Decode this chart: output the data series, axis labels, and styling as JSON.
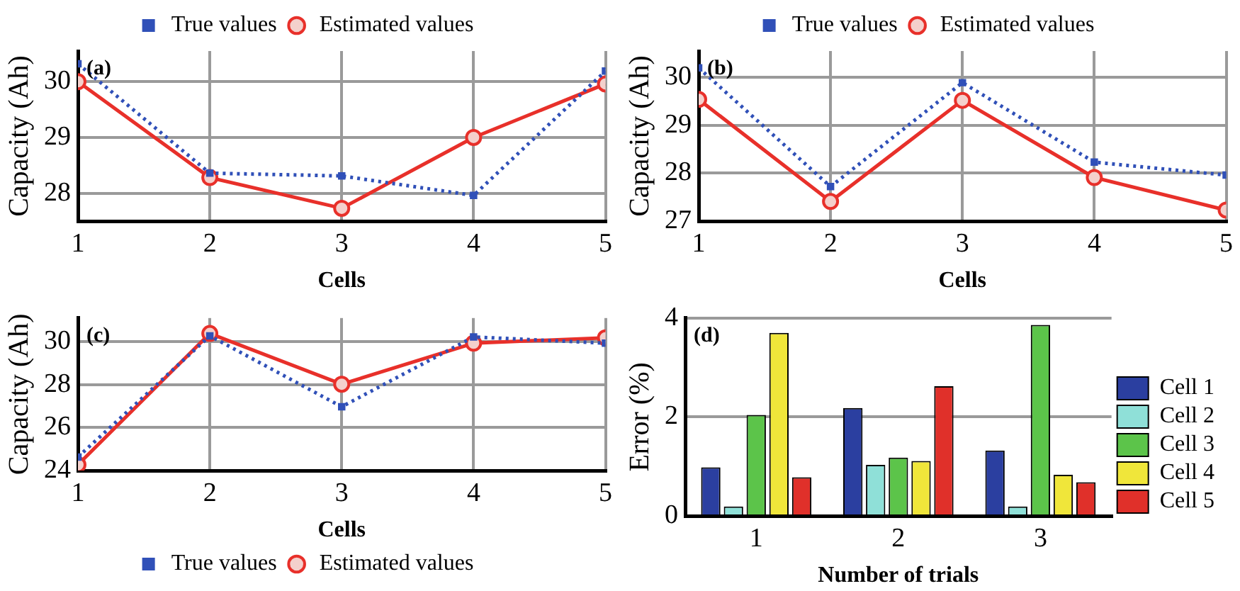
{
  "chart_data": [
    {
      "type": "line",
      "xlabel": "Cells",
      "ylabel": "Capacity (Ah)",
      "annotations": [
        "(a)"
      ],
      "x": [
        1,
        2,
        3,
        4,
        5
      ],
      "xlim": [
        1,
        5
      ],
      "xticks": [
        1,
        2,
        3,
        4,
        5
      ],
      "ylim": [
        27.5,
        30.55
      ],
      "yticks": [
        28,
        29,
        30
      ],
      "grid": true,
      "legend": "top",
      "series": [
        {
          "name": "True values",
          "color": "#3050b8",
          "marker": "square",
          "line_style": "dotted",
          "values": [
            30.32,
            28.36,
            28.31,
            27.96,
            30.19
          ]
        },
        {
          "name": "Estimated values",
          "color": "#e8302a",
          "marker": "circle",
          "line_style": "solid",
          "values": [
            30.0,
            28.28,
            27.73,
            29.0,
            29.96
          ]
        }
      ]
    },
    {
      "type": "line",
      "xlabel": "Cells",
      "ylabel": "Capacity (Ah)",
      "annotations": [
        "(b)"
      ],
      "x": [
        1,
        2,
        3,
        4,
        5
      ],
      "xlim": [
        1,
        5
      ],
      "xticks": [
        1,
        2,
        3,
        4,
        5
      ],
      "ylim": [
        27,
        30.55
      ],
      "yticks": [
        27,
        28,
        29,
        30
      ],
      "grid": true,
      "legend": "top",
      "series": [
        {
          "name": "True values",
          "color": "#3050b8",
          "marker": "square",
          "line_style": "dotted",
          "values": [
            30.2,
            27.72,
            29.89,
            28.23,
            27.96
          ]
        },
        {
          "name": "Estimated values",
          "color": "#e8302a",
          "marker": "circle",
          "line_style": "solid",
          "values": [
            29.54,
            27.41,
            29.52,
            27.91,
            27.23
          ]
        }
      ]
    },
    {
      "type": "line",
      "xlabel": "Cells",
      "ylabel": "Capacity (Ah)",
      "annotations": [
        "(c)"
      ],
      "x": [
        1,
        2,
        3,
        4,
        5
      ],
      "xlim": [
        1,
        5
      ],
      "xticks": [
        1,
        2,
        3,
        4,
        5
      ],
      "ylim": [
        24,
        31.1
      ],
      "yticks": [
        24,
        26,
        28,
        30
      ],
      "grid": true,
      "legend": "bottom",
      "series": [
        {
          "name": "True values",
          "color": "#3050b8",
          "marker": "square",
          "line_style": "dotted",
          "values": [
            24.63,
            30.27,
            26.97,
            30.22,
            29.93
          ]
        },
        {
          "name": "Estimated values",
          "color": "#e8302a",
          "marker": "circle",
          "line_style": "solid",
          "values": [
            24.27,
            30.38,
            28.02,
            29.93,
            30.18
          ]
        }
      ]
    },
    {
      "type": "bar",
      "xlabel": "Number of trials",
      "ylabel": "Error (%)",
      "annotations": [
        "(d)"
      ],
      "categories": [
        "1",
        "2",
        "3"
      ],
      "ylim": [
        0,
        4
      ],
      "yticks": [
        0,
        2,
        4
      ],
      "grid": "y",
      "legend": "right",
      "series": [
        {
          "name": "Cell 1",
          "color": "#2b3fa0",
          "values": [
            0.98,
            2.18,
            1.32
          ]
        },
        {
          "name": "Cell 2",
          "color": "#8fe0d8",
          "values": [
            0.19,
            1.03,
            0.19
          ]
        },
        {
          "name": "Cell 3",
          "color": "#5cc44a",
          "values": [
            2.04,
            1.18,
            3.86
          ]
        },
        {
          "name": "Cell 4",
          "color": "#f0e63a",
          "values": [
            3.7,
            1.11,
            0.83
          ]
        },
        {
          "name": "Cell 5",
          "color": "#e0302a",
          "values": [
            0.78,
            2.62,
            0.68
          ]
        }
      ]
    }
  ]
}
